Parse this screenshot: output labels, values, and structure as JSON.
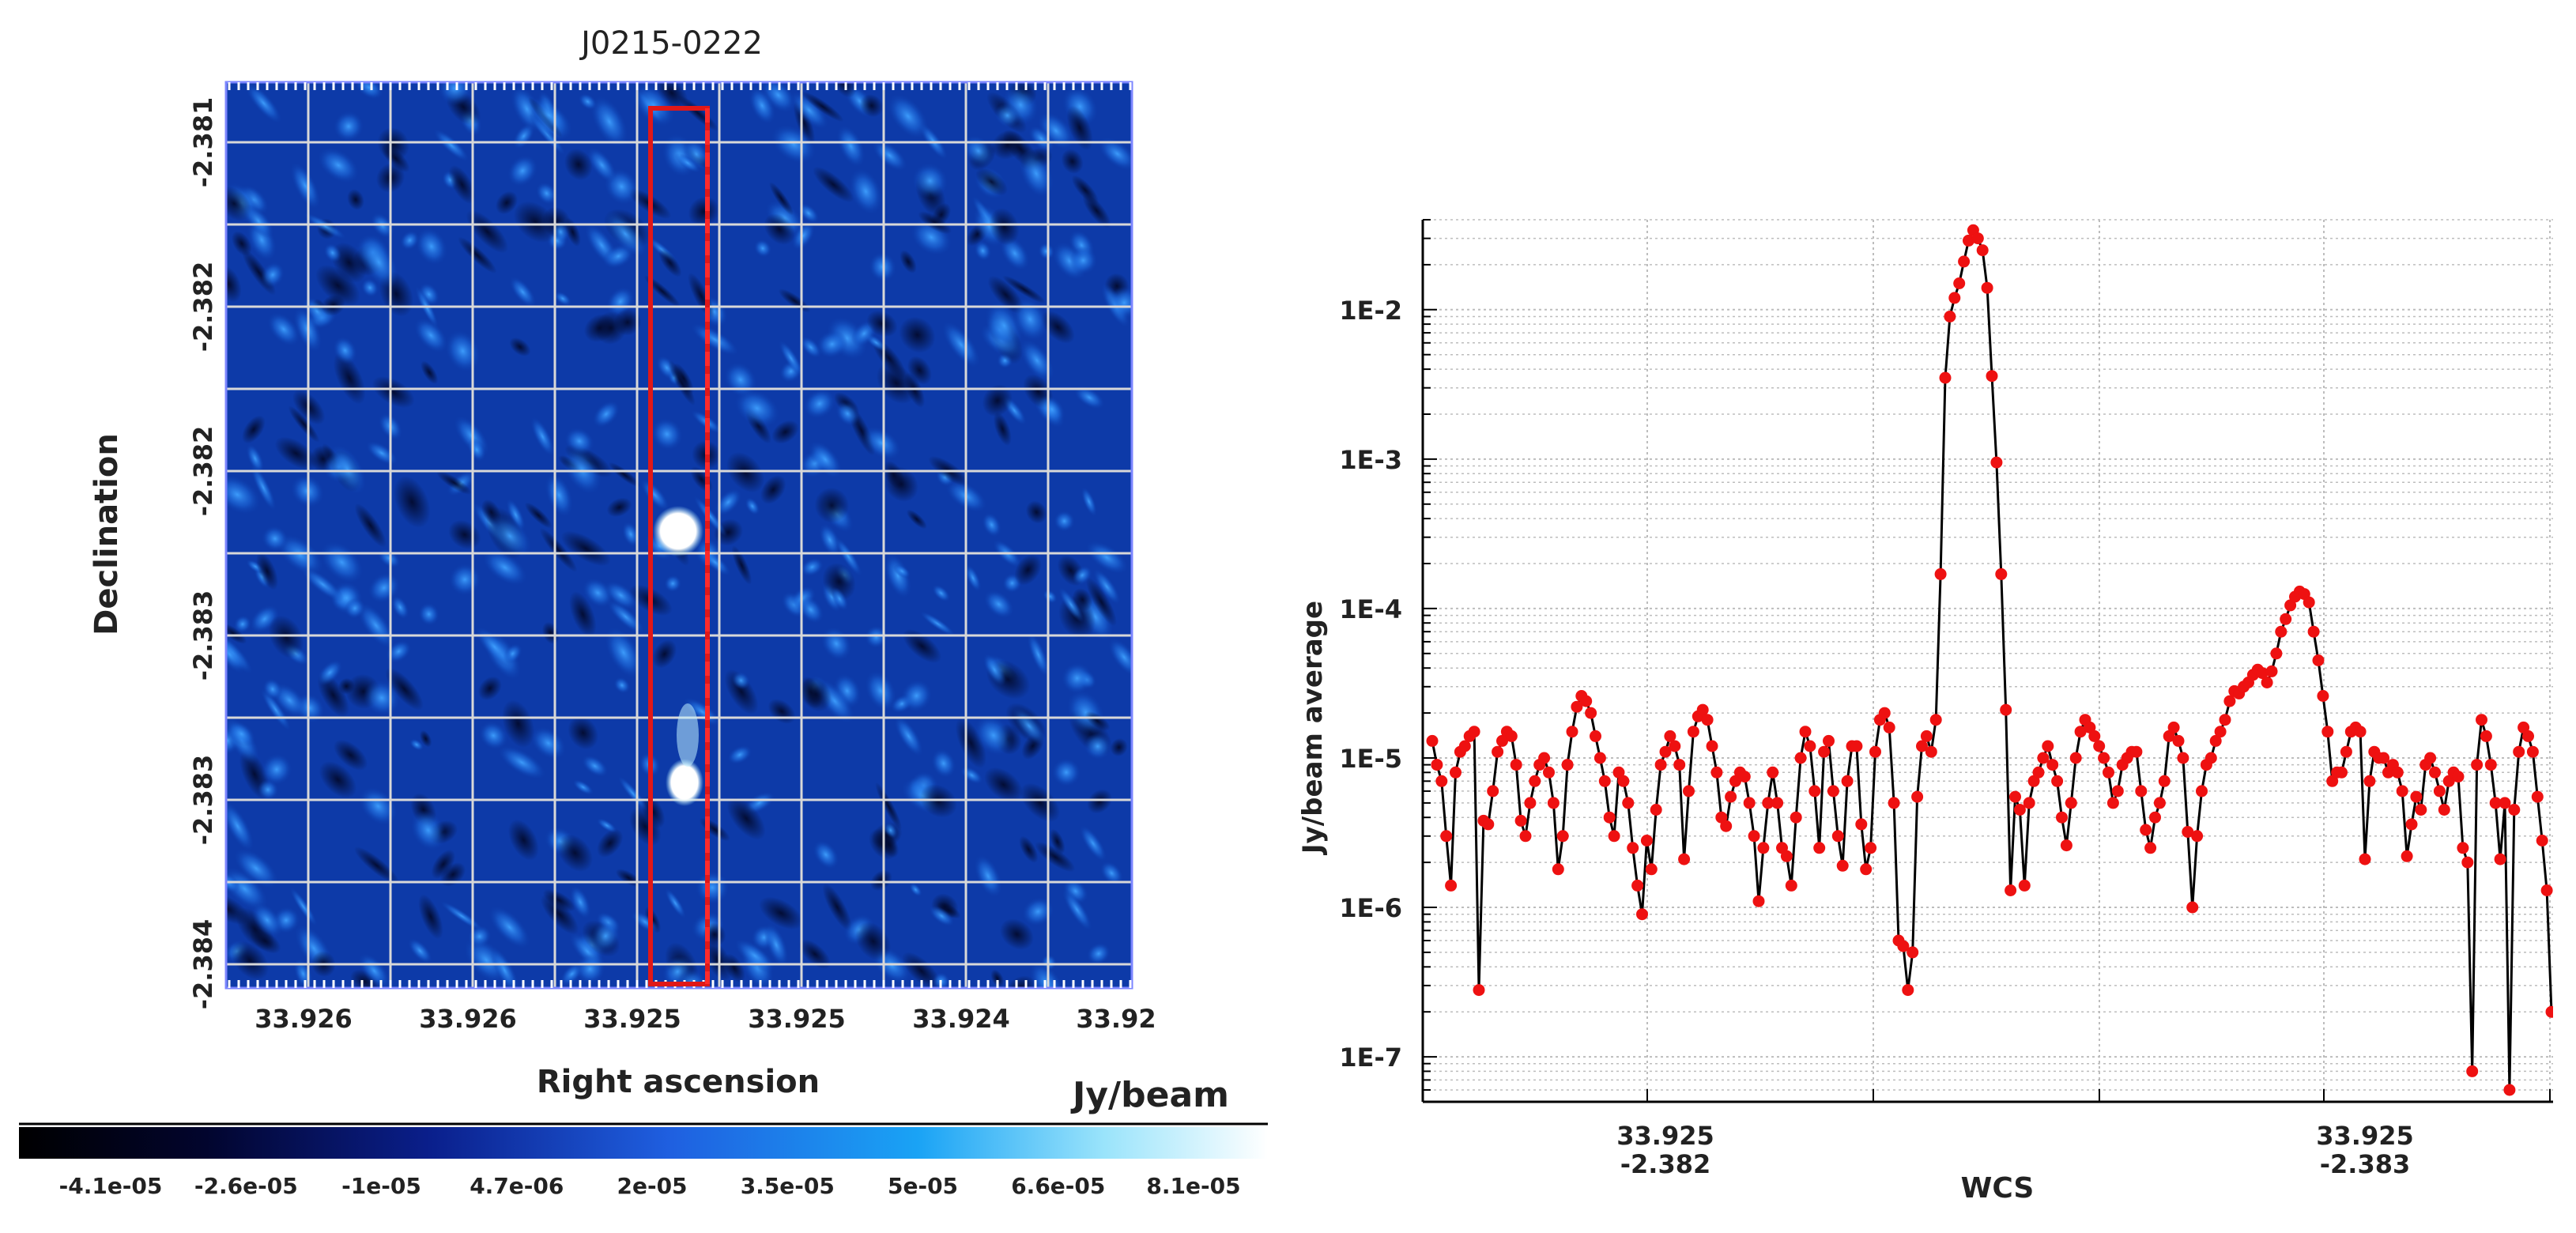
{
  "image_panel": {
    "title": "J0215-0222",
    "xlabel": "Right ascension",
    "ylabel": "Declination",
    "ra_ticks": [
      "33.926",
      "33.926",
      "33.925",
      "33.925",
      "33.924",
      "33.92"
    ],
    "dec_ticks": [
      "-2.381",
      "-2.382",
      "-2.382",
      "-2.383",
      "-2.383",
      "-2.384"
    ]
  },
  "colorbar": {
    "unit_label": "Jy/beam",
    "ticks": [
      "-4.1e-05",
      "-2.6e-05",
      "-1e-05",
      "4.7e-06",
      "2e-05",
      "3.5e-05",
      "5e-05",
      "6.6e-05",
      "8.1e-05"
    ],
    "colors": [
      "#000000",
      "#02052e",
      "#0a1f8c",
      "#1f5fe0",
      "#1aa3f5",
      "#9be4fb",
      "#ffffff"
    ]
  },
  "chart_data": {
    "type": "line",
    "xlabel": "WCS",
    "ylabel": "Jy/beam average",
    "y_scale": "log",
    "ylim": [
      5e-08,
      0.04
    ],
    "yticks": [
      {
        "value": 1e-07,
        "label": "1E-7"
      },
      {
        "value": 1e-06,
        "label": "1E-6"
      },
      {
        "value": 1e-05,
        "label": "1E-5"
      },
      {
        "value": 0.0001,
        "label": "1E-4"
      },
      {
        "value": 0.001,
        "label": "1E-3"
      },
      {
        "value": 0.01,
        "label": "1E-2"
      }
    ],
    "xticks": [
      {
        "index": 50,
        "label": [
          "33.925",
          "-2.382"
        ]
      },
      {
        "index": 200,
        "label": [
          "33.925",
          "-2.383"
        ]
      }
    ],
    "grid": true,
    "series_color": "#000000",
    "marker_color": "#ee1111",
    "series": [
      {
        "values": [
          1.3e-05,
          9e-06,
          7e-06,
          3e-06,
          1.4e-06,
          8e-06,
          1.1e-05,
          1.2e-05,
          1.4e-05,
          1.5e-05,
          2.8e-07,
          3.8e-06,
          3.6e-06,
          6e-06,
          1.1e-05,
          1.3e-05,
          1.5e-05,
          1.4e-05,
          9e-06,
          3.8e-06,
          3e-06,
          5e-06,
          7e-06,
          9e-06,
          1e-05,
          8e-06,
          5e-06,
          1.8e-06,
          3e-06,
          9e-06,
          1.5e-05,
          2.2e-05,
          2.6e-05,
          2.4e-05,
          2e-05,
          1.4e-05,
          1e-05,
          7e-06,
          4e-06,
          3e-06,
          8e-06,
          7e-06,
          5e-06,
          2.5e-06,
          1.4e-06,
          9e-07,
          2.8e-06,
          1.8e-06,
          4.5e-06,
          9e-06,
          1.1e-05,
          1.4e-05,
          1.2e-05,
          9e-06,
          2.1e-06,
          6e-06,
          1.5e-05,
          1.9e-05,
          2.1e-05,
          1.8e-05,
          1.2e-05,
          8e-06,
          4e-06,
          3.5e-06,
          5.5e-06,
          7e-06,
          8e-06,
          7.5e-06,
          5e-06,
          3e-06,
          1.1e-06,
          2.5e-06,
          5e-06,
          8e-06,
          5e-06,
          2.5e-06,
          2.2e-06,
          1.4e-06,
          4e-06,
          1e-05,
          1.5e-05,
          1.2e-05,
          6e-06,
          2.5e-06,
          1.1e-05,
          1.3e-05,
          6e-06,
          3e-06,
          1.9e-06,
          7e-06,
          1.2e-05,
          1.2e-05,
          3.6e-06,
          1.8e-06,
          2.5e-06,
          1.1e-05,
          1.8e-05,
          2e-05,
          1.6e-05,
          5e-06,
          6e-07,
          5.5e-07,
          2.8e-07,
          5e-07,
          5.5e-06,
          1.2e-05,
          1.4e-05,
          1.1e-05,
          1.8e-05,
          0.00017,
          0.0035,
          0.009,
          0.012,
          0.015,
          0.021,
          0.029,
          0.034,
          0.03,
          0.025,
          0.014,
          0.0036,
          0.00095,
          0.00017,
          2.1e-05,
          1.3e-06,
          5.5e-06,
          4.5e-06,
          1.4e-06,
          5e-06,
          7e-06,
          8e-06,
          1e-05,
          1.2e-05,
          9e-06,
          7e-06,
          4e-06,
          2.6e-06,
          5e-06,
          1e-05,
          1.5e-05,
          1.8e-05,
          1.6e-05,
          1.4e-05,
          1.2e-05,
          1e-05,
          8e-06,
          5e-06,
          6e-06,
          9e-06,
          1e-05,
          1.1e-05,
          1.1e-05,
          6e-06,
          3.3e-06,
          2.5e-06,
          4e-06,
          5e-06,
          7e-06,
          1.4e-05,
          1.6e-05,
          1.3e-05,
          1e-05,
          3.2e-06,
          1e-06,
          3e-06,
          6e-06,
          9e-06,
          1e-05,
          1.3e-05,
          1.5e-05,
          1.8e-05,
          2.4e-05,
          2.8e-05,
          2.7e-05,
          3e-05,
          3.2e-05,
          3.6e-05,
          3.9e-05,
          3.7e-05,
          3.2e-05,
          3.8e-05,
          5e-05,
          7e-05,
          8.5e-05,
          0.000105,
          0.00012,
          0.00013,
          0.000125,
          0.00011,
          7e-05,
          4.5e-05,
          2.6e-05,
          1.5e-05,
          7e-06,
          8e-06,
          8e-06,
          1.1e-05,
          1.5e-05,
          1.6e-05,
          1.5e-05,
          2.1e-06,
          7e-06,
          1.1e-05,
          1e-05,
          1e-05,
          8e-06,
          9e-06,
          8e-06,
          6e-06,
          2.2e-06,
          3.6e-06,
          5.5e-06,
          4.5e-06,
          9e-06,
          1e-05,
          8e-06,
          6e-06,
          4.5e-06,
          7e-06,
          8e-06,
          7.5e-06,
          2.5e-06,
          2e-06,
          8e-08,
          9e-06,
          1.8e-05,
          1.4e-05,
          9e-06,
          5e-06,
          2.1e-06,
          5e-06,
          6e-08,
          4.5e-06,
          1.1e-05,
          1.6e-05,
          1.4e-05,
          1.1e-05,
          5.5e-06,
          2.8e-06,
          1.3e-06,
          2e-07
        ]
      }
    ]
  }
}
